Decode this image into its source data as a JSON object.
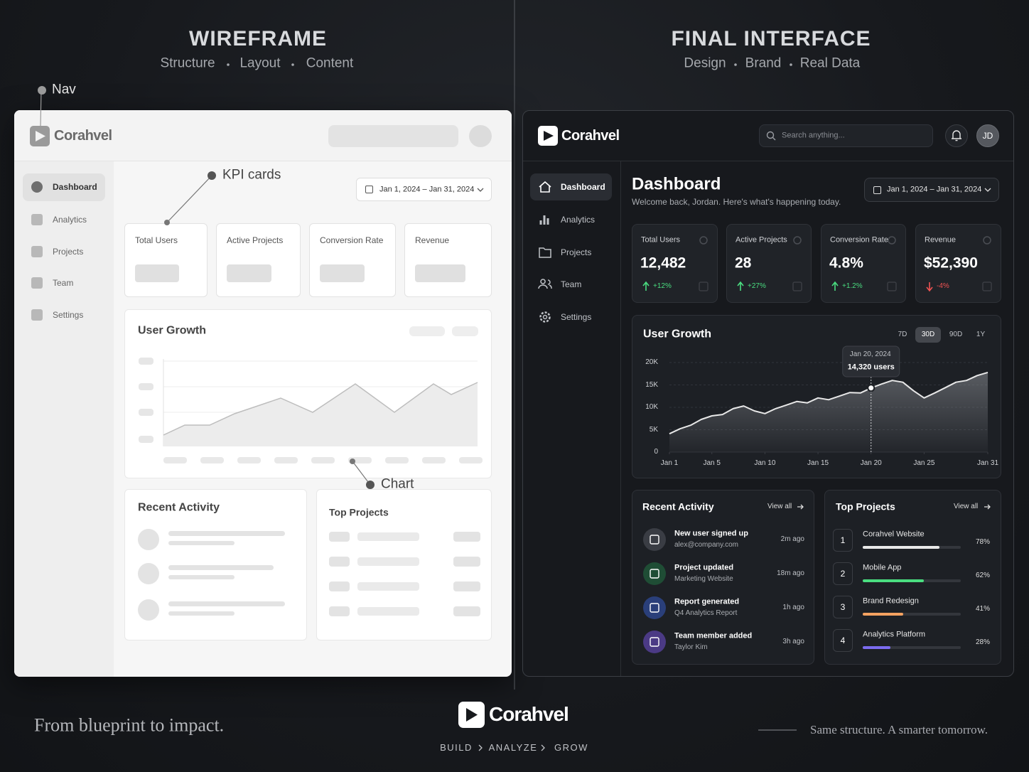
{
  "header_left": {
    "title": "WIREFRAME",
    "tags": [
      "Structure",
      "Layout",
      "Content"
    ]
  },
  "header_right": {
    "title": "FINAL INTERFACE",
    "tags": [
      "Design",
      "Brand",
      "Real Data"
    ]
  },
  "wireframe": {
    "annotations": {
      "nav": "Nav",
      "kpi": "KPI cards",
      "chart": "Chart"
    },
    "brand": "Corahvel",
    "nav": [
      "Dashboard",
      "Analytics",
      "Projects",
      "Team",
      "Settings"
    ],
    "date_range": "Jan 1, 2024 – Jan 31, 2024",
    "kpis": [
      "Total Users",
      "Active Projects",
      "Conversion Rate",
      "Revenue"
    ],
    "panels": {
      "growth": "User Growth",
      "recent": "Recent Activity",
      "top": "Top Projects"
    }
  },
  "final": {
    "brand": "Corahvel",
    "search": "Search anything...",
    "avatar": "JD",
    "nav": [
      "Dashboard",
      "Analytics",
      "Projects",
      "Team",
      "Settings"
    ],
    "page_title": "Dashboard",
    "welcome": "Welcome back, Jordan. Here's what's happening today.",
    "date_range": "Jan 1, 2024 – Jan 31, 2024",
    "kpis": [
      {
        "label": "Total Users",
        "value": "12,482",
        "change": "+12%",
        "trend": "up"
      },
      {
        "label": "Active Projects",
        "value": "28",
        "change": "+27%",
        "trend": "up"
      },
      {
        "label": "Conversion Rate",
        "value": "4.8%",
        "change": "+1.2%",
        "trend": "up"
      },
      {
        "label": "Revenue",
        "value": "$52,390",
        "change": "-4%",
        "trend": "down"
      }
    ],
    "ranges": [
      "7D",
      "30D",
      "90D",
      "1Y"
    ],
    "active_range": 1,
    "recent": {
      "title": "Recent Activity",
      "link": "View all",
      "items": [
        {
          "title": "New user signed up",
          "detail": "alex@company.com",
          "time": "2m ago"
        },
        {
          "title": "Project updated",
          "detail": "Marketing Website",
          "time": "18m ago"
        },
        {
          "title": "Report generated",
          "detail": "Q4 Analytics Report",
          "time": "1h ago"
        },
        {
          "title": "Team member added",
          "detail": "Taylor Kim",
          "time": "3h ago"
        }
      ]
    },
    "top_projects": {
      "title": "Top Projects",
      "link": "View all",
      "items": [
        {
          "rank": 1,
          "name": "Corahvel Website",
          "value": 78,
          "value_label": "78%",
          "color": "#e8e8e8"
        },
        {
          "rank": 2,
          "name": "Mobile App",
          "value": 62,
          "value_label": "62%",
          "color": "#4ade80"
        },
        {
          "rank": 3,
          "name": "Brand Redesign",
          "value": 41,
          "value_label": "41%",
          "color": "#f4a261"
        },
        {
          "rank": 4,
          "name": "Analytics Platform",
          "value": 28,
          "value_label": "28%",
          "color": "#7c6cf0"
        }
      ]
    }
  },
  "chart_data": {
    "type": "area",
    "title": "User Growth",
    "color": "#e8e8e8",
    "x": [
      1,
      2,
      3,
      4,
      5,
      6,
      7,
      8,
      9,
      10,
      11,
      12,
      13,
      14,
      15,
      16,
      17,
      18,
      19,
      20,
      21,
      22,
      23,
      24,
      25,
      26,
      27,
      28,
      29,
      30,
      31
    ],
    "values": [
      4100,
      5200,
      6000,
      7300,
      8100,
      8400,
      9700,
      10300,
      9200,
      8600,
      9700,
      10500,
      11300,
      11000,
      12100,
      11700,
      12500,
      13300,
      13200,
      14320,
      15200,
      16000,
      15600,
      13700,
      12100,
      13200,
      14400,
      15600,
      16000,
      17100,
      17800
    ],
    "xlim": [
      1,
      31
    ],
    "xticks": [
      {
        "value": 1,
        "label": "Jan 1"
      },
      {
        "value": 5,
        "label": "Jan 5"
      },
      {
        "value": 10,
        "label": "Jan 10"
      },
      {
        "value": 15,
        "label": "Jan 15"
      },
      {
        "value": 20,
        "label": "Jan 20"
      },
      {
        "value": 25,
        "label": "Jan 25"
      },
      {
        "value": 31,
        "label": "Jan 31"
      }
    ],
    "ylim": [
      0,
      20000
    ],
    "yticks": [
      0,
      {
        "value": 5000,
        "label": "5K"
      },
      {
        "value": 10000,
        "label": "10K"
      },
      {
        "value": 15000,
        "label": "15K"
      },
      {
        "value": 20000,
        "label": "20K"
      }
    ],
    "grid": true,
    "annotation": {
      "x": 20,
      "date": "Jan 20, 2024",
      "value": 14320,
      "label": "14,320 users"
    }
  },
  "footer": {
    "slogan_left": "From blueprint to impact.",
    "brand": "Corahvel",
    "steps": [
      "BUILD",
      "ANALYZE",
      "GROW"
    ],
    "slogan_right": "Same structure. A smarter tomorrow."
  }
}
